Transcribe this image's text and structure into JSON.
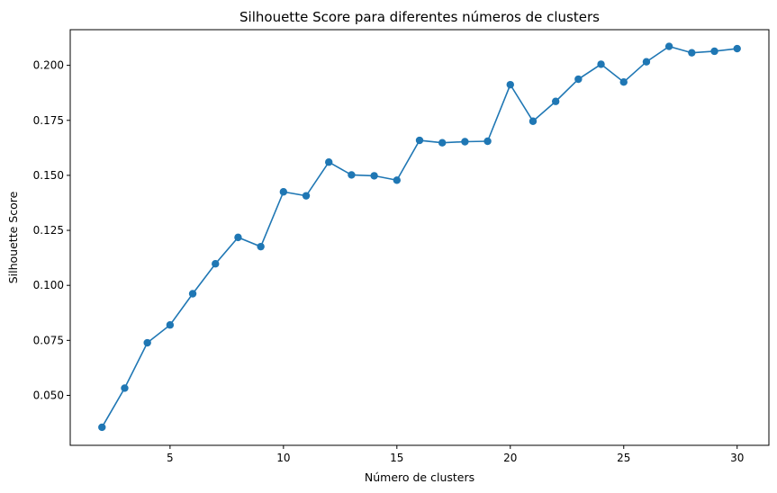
{
  "chart_data": {
    "type": "line",
    "title": "Silhouette Score para diferentes números de clusters",
    "xlabel": "Número de clusters",
    "ylabel": "Silhouette Score",
    "xlim": [
      0.6,
      31.4
    ],
    "ylim": [
      0.0273,
      0.2162
    ],
    "xticks": [
      5,
      10,
      15,
      20,
      25,
      30
    ],
    "xtick_labels": [
      "5",
      "10",
      "15",
      "20",
      "25",
      "30"
    ],
    "yticks": [
      0.05,
      0.075,
      0.1,
      0.125,
      0.15,
      0.175,
      0.2
    ],
    "ytick_labels": [
      "0.050",
      "0.075",
      "0.100",
      "0.125",
      "0.150",
      "0.175",
      "0.200"
    ],
    "grid": false,
    "line_color": "#1f77b4",
    "markers": "circle",
    "x": [
      2,
      3,
      4,
      5,
      6,
      7,
      8,
      9,
      10,
      11,
      12,
      13,
      14,
      15,
      16,
      17,
      18,
      19,
      20,
      21,
      22,
      23,
      24,
      25,
      26,
      27,
      28,
      29,
      30
    ],
    "y": [
      0.0355,
      0.0533,
      0.0739,
      0.082,
      0.0962,
      0.1098,
      0.1218,
      0.1176,
      0.1425,
      0.1407,
      0.156,
      0.1502,
      0.1498,
      0.1478,
      0.1659,
      0.1648,
      0.1653,
      0.1655,
      0.1912,
      0.1746,
      0.1836,
      0.1937,
      0.2005,
      0.1924,
      0.2016,
      0.2086,
      0.2057,
      0.2064,
      0.2076
    ]
  }
}
